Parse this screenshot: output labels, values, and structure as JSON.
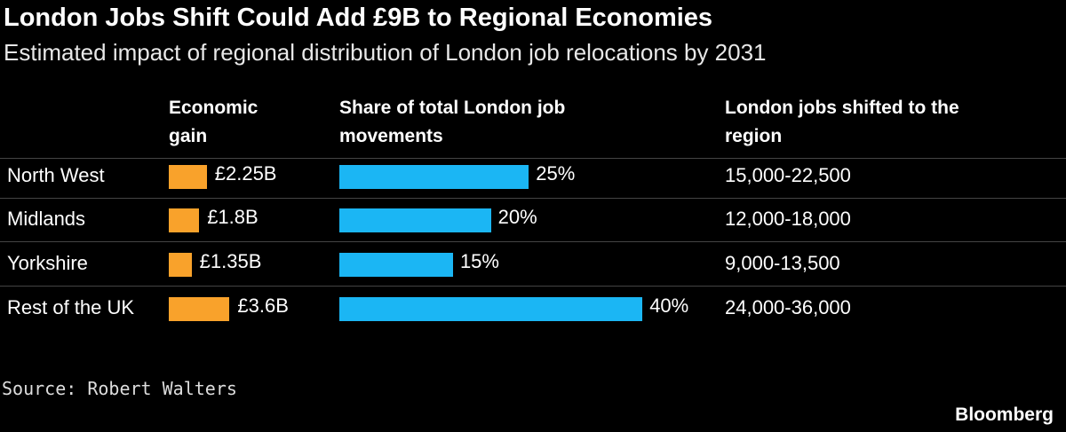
{
  "title": "London Jobs Shift Could Add £9B to Regional Economies",
  "subtitle": "Estimated impact of regional distribution of London job relocations by 2031",
  "table": {
    "headers": [
      "Economic gain",
      "Share of total London job movements",
      "London jobs shifted to the region"
    ],
    "rows": [
      {
        "region": "North West",
        "gain": 2.25,
        "gain_label": "£2.25B",
        "share": 25,
        "share_label": "25%",
        "jobs": "15,000-22,500"
      },
      {
        "region": "Midlands",
        "gain": 1.8,
        "gain_label": "£1.8B",
        "share": 20,
        "share_label": "20%",
        "jobs": "12,000-18,000"
      },
      {
        "region": "Yorkshire",
        "gain": 1.35,
        "gain_label": "£1.35B",
        "share": 15,
        "share_label": "15%",
        "jobs": "9,000-13,500"
      },
      {
        "region": "Rest of the UK",
        "gain": 3.6,
        "gain_label": "£3.6B",
        "share": 40,
        "share_label": "40%",
        "jobs": "24,000-36,000"
      }
    ]
  },
  "source": "Source: Robert Walters",
  "brand": "Bloomberg"
}
